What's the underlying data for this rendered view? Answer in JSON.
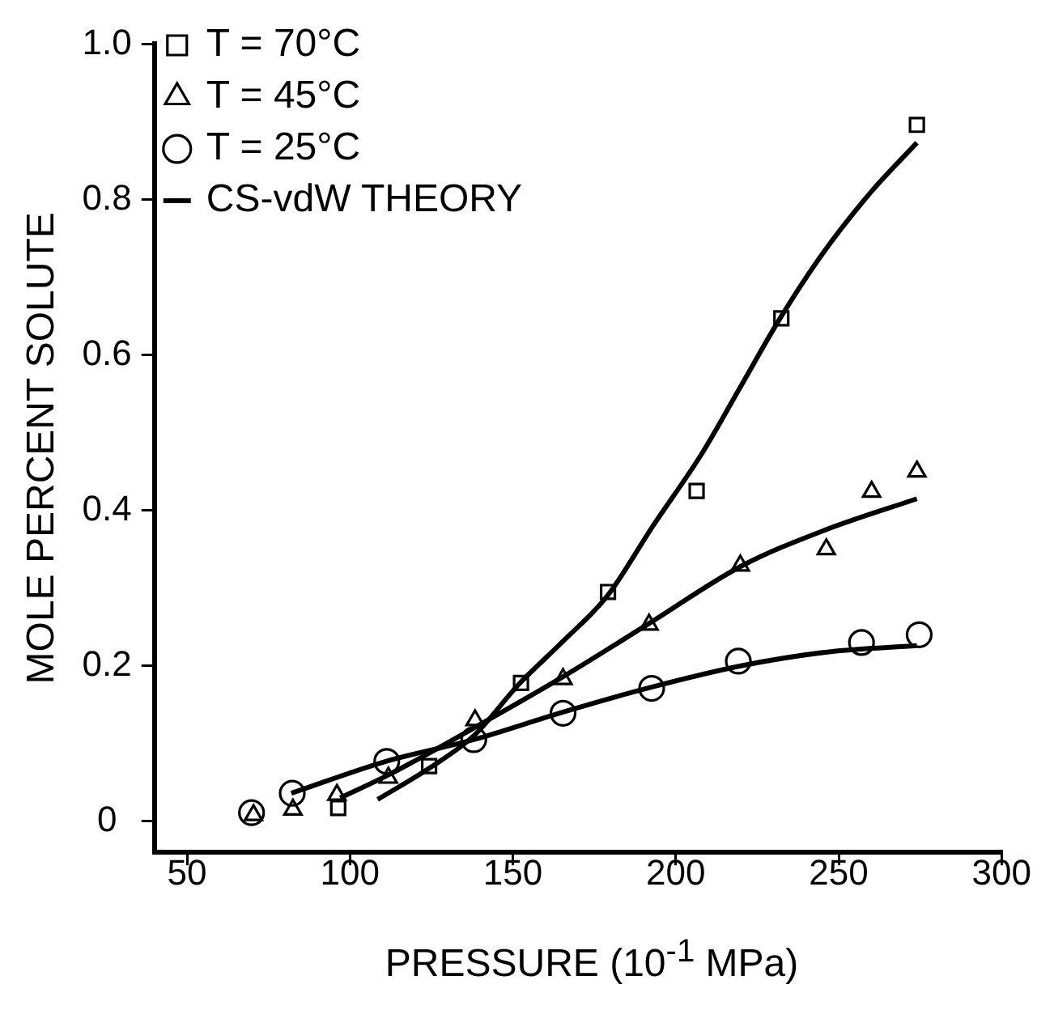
{
  "chart_data": {
    "type": "scatter",
    "xlabel": "PRESSURE (10$^{-1}$ MPa)",
    "ylabel": "MOLE PERCENT SOLUTE",
    "xlim": [
      40,
      300
    ],
    "ylim": [
      -0.04,
      1.0
    ],
    "xticks": [
      50,
      100,
      150,
      200,
      250,
      300
    ],
    "yticks": [
      0,
      0.2,
      0.4,
      0.6,
      0.8,
      {
        "value": 1,
        "label": "1.0"
      }
    ],
    "grid": false,
    "legend": "top left",
    "series": [
      {
        "name": "T = 70°C",
        "type": "scatter",
        "marker": "square",
        "color": "#000000",
        "x": [
          96.4,
          124.3,
          152.5,
          179.2,
          206.4,
          232.4,
          274
        ],
        "values": [
          0.017,
          0.071,
          0.178,
          0.295,
          0.425,
          0.647,
          0.896
        ]
      },
      {
        "name": "T = 45°C",
        "type": "scatter",
        "marker": "triangle",
        "color": "#000000",
        "x": [
          70.4,
          82.5,
          96,
          111.8,
          138.4,
          165.4,
          191.8,
          219.8,
          246.2,
          260.1,
          274
        ],
        "values": [
          0.008,
          0.015,
          0.034,
          0.056,
          0.13,
          0.183,
          0.253,
          0.329,
          0.35,
          0.424,
          0.45
        ]
      },
      {
        "name": "T = 25°C",
        "type": "scatter",
        "marker": "circle",
        "color": "#000000",
        "x": [
          69.8,
          82.3,
          111.3,
          138,
          165.4,
          192.6,
          219.2,
          257,
          274.7
        ],
        "values": [
          0.011,
          0.036,
          0.077,
          0.105,
          0.139,
          0.171,
          0.206,
          0.23,
          0.24
        ]
      },
      {
        "name": "CS-vdW THEORY",
        "type": "line",
        "marker": "none",
        "line_style": "solid",
        "color": "#000000",
        "x": [
          108.5,
          125,
          138,
          152,
          165,
          179,
          193,
          208,
          220,
          232,
          245,
          260,
          274
        ],
        "values": [
          0.028,
          0.07,
          0.11,
          0.177,
          0.23,
          0.29,
          0.38,
          0.473,
          0.56,
          0.647,
          0.73,
          0.81,
          0.873
        ]
      },
      {
        "type": "line",
        "marker": "none",
        "line_style": "solid",
        "color": "#000000",
        "x": [
          97,
          112,
          138,
          165,
          192,
          220,
          246,
          274
        ],
        "values": [
          0.03,
          0.06,
          0.12,
          0.185,
          0.255,
          0.328,
          0.375,
          0.415
        ]
      },
      {
        "type": "line",
        "marker": "none",
        "line_style": "solid",
        "color": "#000000",
        "x": [
          82,
          111,
          138,
          165,
          192,
          220,
          247,
          274
        ],
        "values": [
          0.036,
          0.077,
          0.105,
          0.14,
          0.172,
          0.2,
          0.218,
          0.226
        ]
      }
    ]
  }
}
